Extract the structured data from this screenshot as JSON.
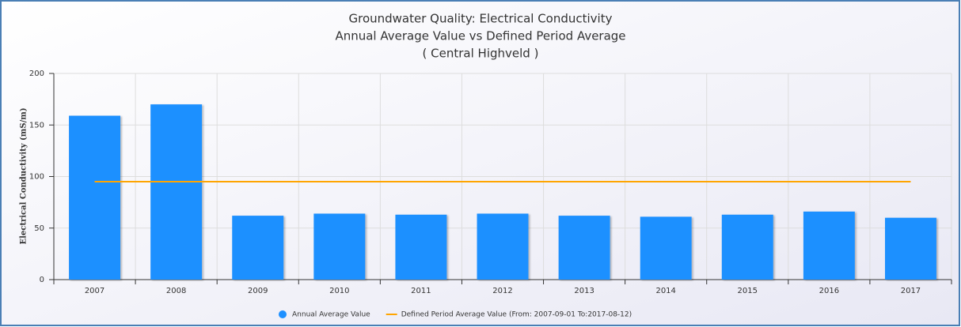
{
  "chart_data": {
    "type": "bar",
    "title": [
      "Groundwater Quality: Electrical Conductivity",
      "Annual Average Value vs Defined Period Average",
      "( Central Highveld )"
    ],
    "y_label": "Electrical Conductivity (mS/m)",
    "categories": [
      "2007",
      "2008",
      "2009",
      "2010",
      "2011",
      "2012",
      "2013",
      "2014",
      "2015",
      "2016",
      "2017"
    ],
    "series": [
      {
        "name": "Annual Average Value",
        "type": "bar",
        "color": "#1e90ff",
        "values": [
          159,
          170,
          62,
          64,
          63,
          64,
          62,
          61,
          63,
          66,
          60
        ]
      },
      {
        "name": "Defined Period Average Value (From: 2007-09-01 To:2017-08-12)",
        "type": "line",
        "color": "#ffa500",
        "values": [
          95,
          95,
          95,
          95,
          95,
          95,
          95,
          95,
          95,
          95,
          95
        ]
      }
    ],
    "ylim": [
      0,
      200
    ],
    "yticks": [
      0,
      50,
      100,
      150,
      200
    ],
    "grid": true,
    "legend": "bottom"
  }
}
